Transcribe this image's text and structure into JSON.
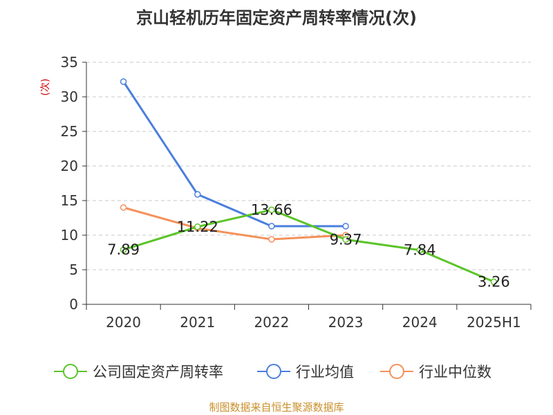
{
  "chart_data": {
    "type": "line",
    "title": "京山轻机历年固定资产周转率情况(次)",
    "ylabel": "(次)",
    "xlabel": "",
    "ylim": [
      0,
      35
    ],
    "yticks": [
      0,
      5,
      10,
      15,
      20,
      25,
      30,
      35
    ],
    "categories": [
      "2020",
      "2021",
      "2022",
      "2023",
      "2024",
      "2025H1"
    ],
    "grid": true,
    "legend_position": "bottom",
    "series": [
      {
        "name": "公司固定资产周转率",
        "color": "#5bc428",
        "values": [
          7.89,
          11.22,
          13.66,
          9.37,
          7.84,
          3.26
        ],
        "labels": [
          "7.89",
          "11.22",
          "13.66",
          "9.37",
          "7.84",
          "3.26"
        ]
      },
      {
        "name": "行业均值",
        "color": "#4a7fdc",
        "values": [
          32.2,
          15.9,
          11.3,
          11.3,
          null,
          null
        ]
      },
      {
        "name": "行业中位数",
        "color": "#f4915a",
        "values": [
          14.0,
          11.0,
          9.4,
          10.0,
          null,
          null
        ]
      }
    ]
  },
  "source": "制图数据来自恒生聚源数据库"
}
